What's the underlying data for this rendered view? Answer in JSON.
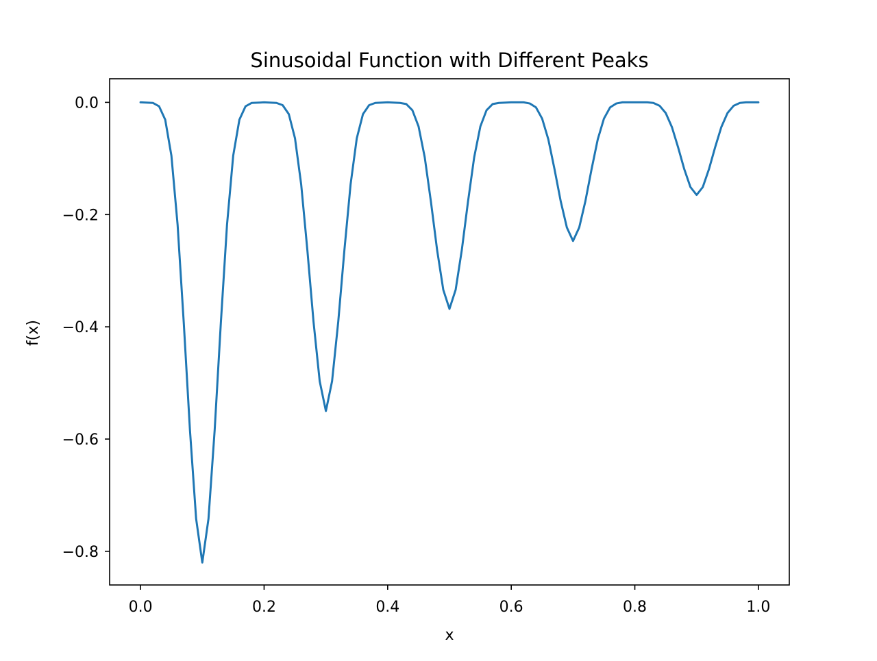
{
  "chart_data": {
    "type": "line",
    "title": "Sinusoidal Function with Different Peaks",
    "xlabel": "x",
    "ylabel": "f(x)",
    "xlim": [
      -0.05,
      1.05
    ],
    "ylim": [
      -0.86,
      0.042
    ],
    "grid": false,
    "x_ticks": [
      0.0,
      0.2,
      0.4,
      0.6,
      0.8,
      1.0
    ],
    "x_tick_labels": [
      "0.0",
      "0.2",
      "0.4",
      "0.6",
      "0.8",
      "1.0"
    ],
    "y_ticks": [
      0.0,
      -0.2,
      -0.4,
      -0.6,
      -0.8
    ],
    "y_tick_labels": [
      "0.0",
      "−0.2",
      "−0.4",
      "−0.6",
      "−0.8"
    ],
    "series": [
      {
        "color": "#1f77b4",
        "x": [
          0.0,
          0.02,
          0.03,
          0.04,
          0.05,
          0.06,
          0.07,
          0.08,
          0.09,
          0.1,
          0.11,
          0.12,
          0.13,
          0.14,
          0.15,
          0.16,
          0.17,
          0.18,
          0.2,
          0.22,
          0.23,
          0.24,
          0.25,
          0.26,
          0.27,
          0.28,
          0.29,
          0.3,
          0.31,
          0.32,
          0.33,
          0.34,
          0.35,
          0.36,
          0.37,
          0.38,
          0.4,
          0.42,
          0.43,
          0.44,
          0.45,
          0.46,
          0.47,
          0.48,
          0.49,
          0.5,
          0.51,
          0.52,
          0.53,
          0.54,
          0.55,
          0.56,
          0.57,
          0.58,
          0.6,
          0.62,
          0.63,
          0.64,
          0.65,
          0.66,
          0.67,
          0.68,
          0.69,
          0.7,
          0.71,
          0.72,
          0.73,
          0.74,
          0.75,
          0.76,
          0.77,
          0.78,
          0.8,
          0.82,
          0.83,
          0.84,
          0.85,
          0.86,
          0.87,
          0.88,
          0.89,
          0.9,
          0.91,
          0.92,
          0.93,
          0.94,
          0.95,
          0.96,
          0.97,
          0.98,
          1.0
        ],
        "y": [
          0.0,
          -0.001,
          -0.007,
          -0.031,
          -0.095,
          -0.218,
          -0.393,
          -0.584,
          -0.742,
          -0.82,
          -0.742,
          -0.584,
          -0.393,
          -0.218,
          -0.095,
          -0.031,
          -0.007,
          -0.001,
          0.0,
          -0.001,
          -0.005,
          -0.021,
          -0.064,
          -0.146,
          -0.263,
          -0.391,
          -0.497,
          -0.55,
          -0.497,
          -0.391,
          -0.263,
          -0.146,
          -0.064,
          -0.021,
          -0.005,
          -0.001,
          0.0,
          -0.001,
          -0.003,
          -0.014,
          -0.043,
          -0.098,
          -0.177,
          -0.263,
          -0.334,
          -0.368,
          -0.334,
          -0.263,
          -0.177,
          -0.098,
          -0.043,
          -0.014,
          -0.003,
          -0.001,
          0.0,
          0.0,
          -0.002,
          -0.009,
          -0.029,
          -0.066,
          -0.119,
          -0.176,
          -0.223,
          -0.247,
          -0.223,
          -0.176,
          -0.119,
          -0.066,
          -0.029,
          -0.009,
          -0.002,
          0.0,
          0.0,
          0.0,
          -0.001,
          -0.006,
          -0.019,
          -0.044,
          -0.08,
          -0.119,
          -0.151,
          -0.165,
          -0.151,
          -0.119,
          -0.08,
          -0.044,
          -0.019,
          -0.006,
          -0.001,
          0.0,
          0.0
        ]
      }
    ]
  }
}
